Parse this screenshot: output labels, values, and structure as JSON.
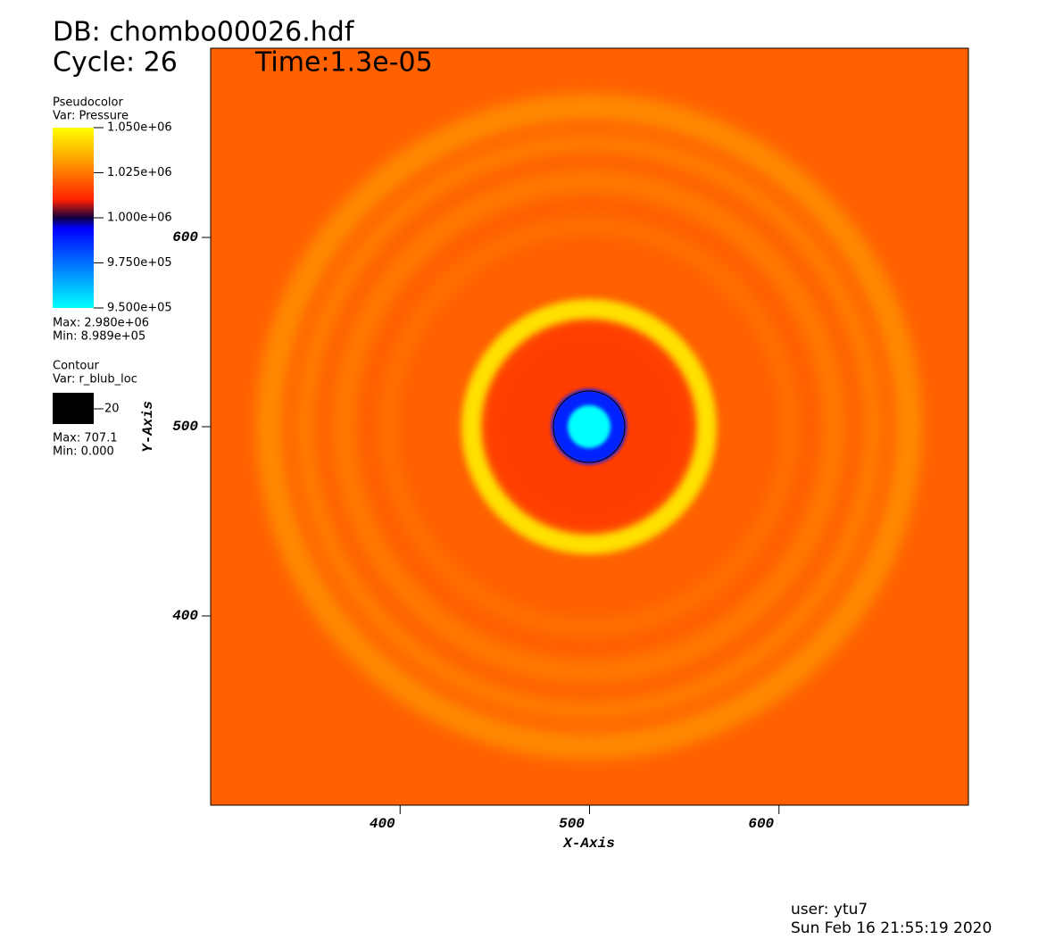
{
  "header": {
    "database": "DB: chombo00026.hdf",
    "cycle": "Cycle: 26",
    "time": "Time:1.3e-05"
  },
  "legend": {
    "pseudocolor": {
      "title": "Pseudocolor",
      "var": "Var: Pressure",
      "labels": [
        "1.050e+06",
        "1.025e+06",
        "1.000e+06",
        "9.750e+05",
        "9.500e+05"
      ],
      "max": "Max: 2.980e+06",
      "min": "Min:  8.989e+05"
    },
    "contour": {
      "title": "Contour",
      "var": "Var: r_blub_loc",
      "level": "20",
      "max": "Max: 707.1",
      "min": "Min: 0.000"
    }
  },
  "axes": {
    "x": {
      "label": "X-Axis",
      "lim": [
        300,
        700
      ],
      "ticks": [
        400,
        500,
        600
      ]
    },
    "y": {
      "label": "Y-Axis",
      "lim": [
        300,
        700
      ],
      "ticks": [
        400,
        500,
        600
      ]
    }
  },
  "footer": {
    "user": "user: ytu7",
    "date": "Sun Feb 16 21:55:19 2020"
  }
}
